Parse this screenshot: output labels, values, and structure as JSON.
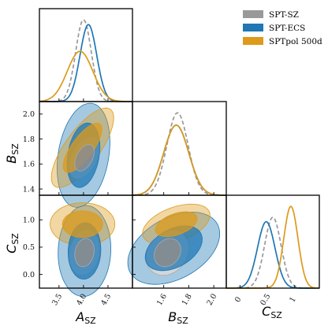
{
  "chart_data": {
    "type": "triangle",
    "parameters": [
      {
        "key": "A",
        "label_main": "A",
        "label_sub": "SZ",
        "range": [
          3.1,
          5.0
        ],
        "ticks": [
          "3.5",
          "4.0",
          "4.5"
        ]
      },
      {
        "key": "B",
        "label_main": "B",
        "label_sub": "SZ",
        "range": [
          1.35,
          2.1
        ],
        "ticks": [
          "1.6",
          "1.8",
          "2.0"
        ],
        "yticks": [
          "1.4",
          "1.6",
          "1.8",
          "2.0"
        ]
      },
      {
        "key": "C",
        "label_main": "C",
        "label_sub": "SZ",
        "range": [
          -0.25,
          1.45
        ],
        "ticks": [
          "0",
          "0.5",
          "1"
        ],
        "yticks": [
          "0.0",
          "0.5",
          "1.0"
        ]
      }
    ],
    "series": [
      {
        "name": "SPT-SZ",
        "color": "#999999",
        "line": "dashed",
        "marginals": {
          "A": {
            "mean": 4.0,
            "sd": 0.16
          },
          "B": {
            "mean": 1.71,
            "sd": 0.085
          },
          "C": {
            "mean": 0.6,
            "sd": 0.15
          }
        },
        "contours": [
          {
            "pair": [
              "A",
              "B"
            ],
            "center": [
              4.02,
              1.65
            ],
            "sd": [
              0.13,
              0.07
            ],
            "rho": 0.45
          },
          {
            "pair": [
              "A",
              "C"
            ],
            "center": [
              4.02,
              0.4
            ],
            "sd": [
              0.13,
              0.17
            ],
            "rho": 0.15
          },
          {
            "pair": [
              "B",
              "C"
            ],
            "center": [
              1.63,
              0.4
            ],
            "sd": [
              0.07,
              0.17
            ],
            "rho": 0.2
          }
        ]
      },
      {
        "name": "SPT-ECS",
        "color": "#1f77b4",
        "line": "solid",
        "marginals": {
          "A": {
            "mean": 4.1,
            "sd": 0.17
          },
          "B": {
            "mean": 1.7,
            "sd": 0.1
          },
          "C": {
            "mean": 0.48,
            "sd": 0.16
          }
        },
        "contours": [
          {
            "pair": [
              "A",
              "B"
            ],
            "center": [
              4.0,
              1.67
            ],
            "sd": [
              0.22,
              0.17
            ],
            "rho": 0.25
          },
          {
            "pair": [
              "A",
              "C"
            ],
            "center": [
              4.02,
              0.43
            ],
            "sd": [
              0.22,
              0.34
            ],
            "rho": 0.05
          },
          {
            "pair": [
              "B",
              "C"
            ],
            "center": [
              1.68,
              0.48
            ],
            "sd": [
              0.15,
              0.27
            ],
            "rho": 0.4
          }
        ]
      },
      {
        "name": "SPTpol 500d",
        "color": "#dd9a1b",
        "line": "solid",
        "marginals": {
          "A": {
            "mean": 3.93,
            "sd": 0.26
          },
          "B": {
            "mean": 1.7,
            "sd": 0.1
          },
          "C": {
            "mean": 0.93,
            "sd": 0.13
          }
        },
        "contours": [
          {
            "pair": [
              "A",
              "B"
            ],
            "center": [
              3.98,
              1.73
            ],
            "sd": [
              0.26,
              0.13
            ],
            "rho": 0.75
          },
          {
            "pair": [
              "A",
              "C"
            ],
            "center": [
              3.98,
              0.92
            ],
            "sd": [
              0.27,
              0.16
            ],
            "rho": 0.0
          },
          {
            "pair": [
              "B",
              "C"
            ],
            "center": [
              1.7,
              0.92
            ],
            "sd": [
              0.11,
              0.15
            ],
            "rho": 0.45
          }
        ]
      }
    ],
    "legend": {
      "placement": "top-right"
    },
    "grid": false
  }
}
